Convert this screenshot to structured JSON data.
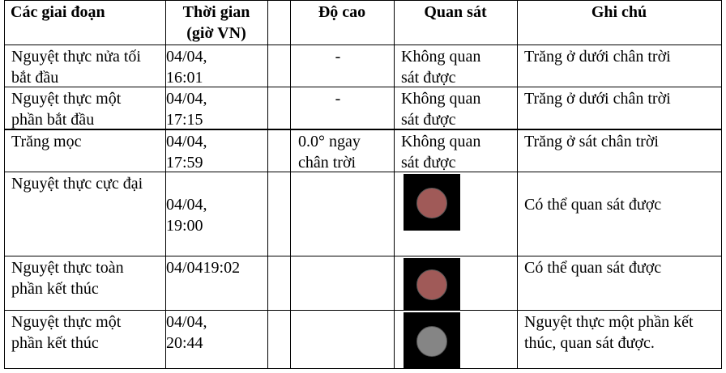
{
  "table": {
    "header": [
      "Các giai đoạn",
      "Thời gian (giờ VN)",
      "Độ cao",
      "Quan sát",
      "Ghi chú"
    ],
    "rows": [
      {
        "stage": "Nguyệt thực nửa tối bắt đầu",
        "time": "04/04, 16:01",
        "height": "-",
        "observe": "Không quan sát được",
        "note": "Trăng ở dưới chân trời"
      },
      {
        "stage": "Nguyệt thực một phần bắt đầu",
        "time": "04/04, 17:15",
        "height": "-",
        "observe": "Không quan sát được",
        "note": "Trăng ở dưới chân trời"
      },
      {
        "stage": "Trăng mọc",
        "time": "04/04, 17:59",
        "height": "0.0° ngay chân trời",
        "observe": "Không quan sát được",
        "note": "Trăng ở sát chân trời"
      },
      {
        "stage": "Nguyệt thực cực đại",
        "time": "04/04, 19:00",
        "moon_color": "#a05a58",
        "note": "Có thể quan sát được"
      },
      {
        "stage": "Nguyệt thực toàn phần kết thúc",
        "time": "04/0419:02",
        "moon_color": "#a05a58",
        "note": "Có thể quan sát được"
      },
      {
        "stage": "Nguyệt thực một phần kết thúc",
        "time": "04/04, 20:44",
        "moon_color": "#858585",
        "note": "Nguyệt thực một phần kết thúc, quan sát được."
      }
    ]
  }
}
